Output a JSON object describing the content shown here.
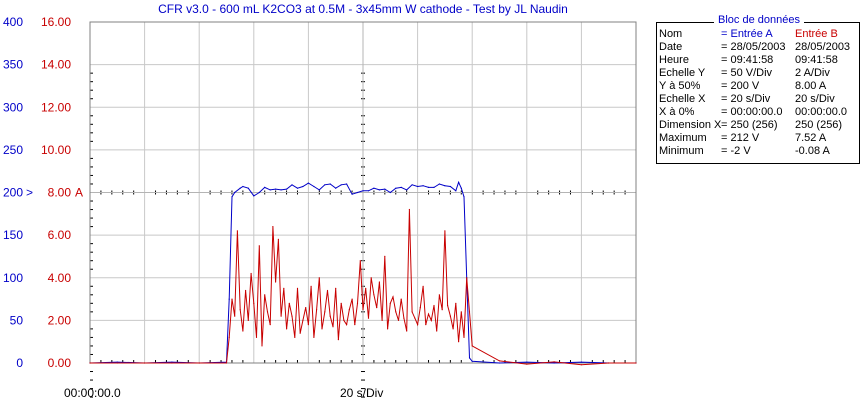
{
  "chart_data": {
    "type": "line",
    "title": "CFR v3.0 - 600 mL K2CO3 at 0.5M - 3x45mm W cathode - Test by JL Naudin",
    "x_unit": "s",
    "x_range": [
      0,
      200
    ],
    "x_tick_labels": [
      "00:00:00.0",
      "20 s/Div"
    ],
    "y_left": {
      "range": [
        0,
        400
      ],
      "ticks": [
        "0",
        "50",
        "100",
        "150",
        "200",
        "250",
        "300",
        "350",
        "400"
      ],
      "color": "#0000c8",
      "marker": ">"
    },
    "y_right": {
      "range": [
        0,
        16
      ],
      "ticks": [
        "0.00",
        "2.00",
        "4.00",
        "6.00",
        "8.00",
        "10.00",
        "12.00",
        "14.00",
        "16.00"
      ],
      "color": "#c80000",
      "marker": "A"
    },
    "grid": true,
    "series": [
      {
        "name": "Entrée A",
        "axis": "left",
        "color": "#0000c8",
        "x": [
          0,
          10,
          20,
          30,
          40,
          50,
          51,
          52,
          53,
          55,
          56,
          58,
          60,
          62,
          64,
          66,
          68,
          70,
          72,
          74,
          76,
          78,
          80,
          82,
          84,
          86,
          88,
          90,
          92,
          94,
          96,
          98,
          100,
          102,
          104,
          106,
          108,
          110,
          112,
          114,
          116,
          118,
          120,
          122,
          124,
          126,
          128,
          130,
          132,
          134,
          135,
          136,
          137,
          138,
          139,
          140,
          150,
          160,
          170,
          180,
          190,
          200
        ],
        "y": [
          0,
          1,
          0,
          1,
          0,
          1,
          75,
          195,
          200,
          205,
          207,
          205,
          196,
          200,
          206,
          203,
          204,
          203,
          204,
          209,
          205,
          207,
          211,
          207,
          203,
          209,
          210,
          205,
          209,
          210,
          198,
          200,
          202,
          202,
          205,
          203,
          204,
          200,
          205,
          206,
          203,
          209,
          207,
          208,
          206,
          206,
          210,
          208,
          207,
          202,
          212,
          205,
          195,
          100,
          6,
          2,
          0,
          1,
          0,
          1,
          0,
          0
        ]
      },
      {
        "name": "Entrée B",
        "axis": "right",
        "color": "#c80000",
        "x": [
          0,
          10,
          20,
          30,
          40,
          50,
          51,
          52,
          53,
          54,
          55,
          56,
          57,
          58,
          59,
          60,
          61,
          62,
          63,
          64,
          65,
          66,
          67,
          68,
          69,
          70,
          71,
          72,
          73,
          74,
          75,
          76,
          77,
          78,
          79,
          80,
          81,
          82,
          83,
          84,
          85,
          86,
          87,
          88,
          89,
          90,
          91,
          92,
          93,
          94,
          95,
          96,
          97,
          98,
          99,
          100,
          101,
          102,
          103,
          104,
          105,
          106,
          107,
          108,
          109,
          110,
          111,
          112,
          113,
          114,
          115,
          116,
          117,
          118,
          119,
          120,
          121,
          122,
          123,
          124,
          125,
          126,
          127,
          128,
          129,
          130,
          131,
          132,
          133,
          134,
          135,
          136,
          137,
          138,
          139,
          140,
          150,
          160,
          170,
          180,
          190,
          200
        ],
        "y": [
          0,
          0,
          0,
          0,
          0,
          0,
          1.2,
          3.0,
          2.2,
          6.2,
          2.5,
          1.5,
          3.4,
          2.0,
          4.2,
          2.8,
          1.2,
          5.5,
          0.8,
          3.2,
          2.4,
          1.8,
          6.4,
          3.8,
          5.8,
          2.2,
          3.5,
          1.6,
          2.8,
          2.2,
          1.2,
          3.5,
          1.4,
          2.0,
          2.6,
          1.8,
          3.6,
          1.2,
          2.5,
          4.0,
          1.6,
          2.4,
          3.4,
          2.2,
          1.7,
          3.5,
          1.1,
          2.8,
          2.0,
          1.8,
          2.5,
          3.0,
          1.8,
          2.8,
          4.8,
          2.5,
          3.5,
          2.1,
          4.0,
          3.2,
          2.6,
          3.8,
          2.0,
          5.0,
          1.6,
          2.8,
          3.1,
          2.4,
          2.0,
          3.0,
          2.1,
          1.5,
          7.2,
          2.4,
          2.1,
          1.8,
          2.6,
          3.6,
          1.8,
          2.3,
          2.0,
          2.7,
          1.5,
          3.2,
          2.5,
          6.2,
          2.7,
          2.2,
          1.6,
          2.8,
          1.0,
          2.4,
          1.2,
          4.0,
          2.4,
          0.8,
          0.1,
          -0.05,
          0.05,
          -0.08,
          0,
          0
        ]
      }
    ]
  },
  "data_block": {
    "title": "Bloc de données",
    "rows": [
      {
        "label": "Nom",
        "a": "= Entrée A",
        "b": "Entrée B"
      },
      {
        "label": "Date",
        "a": "= 28/05/2003",
        "b": "28/05/2003"
      },
      {
        "label": "Heure",
        "a": "= 09:41:58",
        "b": "09:41:58"
      },
      {
        "label": "Echelle Y",
        "a": "=    50 V/Div",
        "b": "2     A/Div"
      },
      {
        "label": "Y à 50%",
        "a": "= 200 V",
        "b": "8.00 A"
      },
      {
        "label": "Echelle X",
        "a": "=    20 s/Div",
        "b": "20     s/Div"
      },
      {
        "label": "X à 0%",
        "a": "= 00:00:00.0",
        "b": "00:00:00.0"
      },
      {
        "label": "Dimension X",
        "a": "= 250 (256)",
        "b": "250 (256)"
      },
      {
        "label": "Maximum",
        "a": "= 212 V",
        "b": "7.52 A"
      },
      {
        "label": "Minimum",
        "a": "=    -2 V",
        "b": "-0.08 A"
      }
    ]
  },
  "colors": {
    "channel_a": "#0000c8",
    "channel_b": "#c80000",
    "grid": "#c8c8c8",
    "axis": "#000000"
  }
}
